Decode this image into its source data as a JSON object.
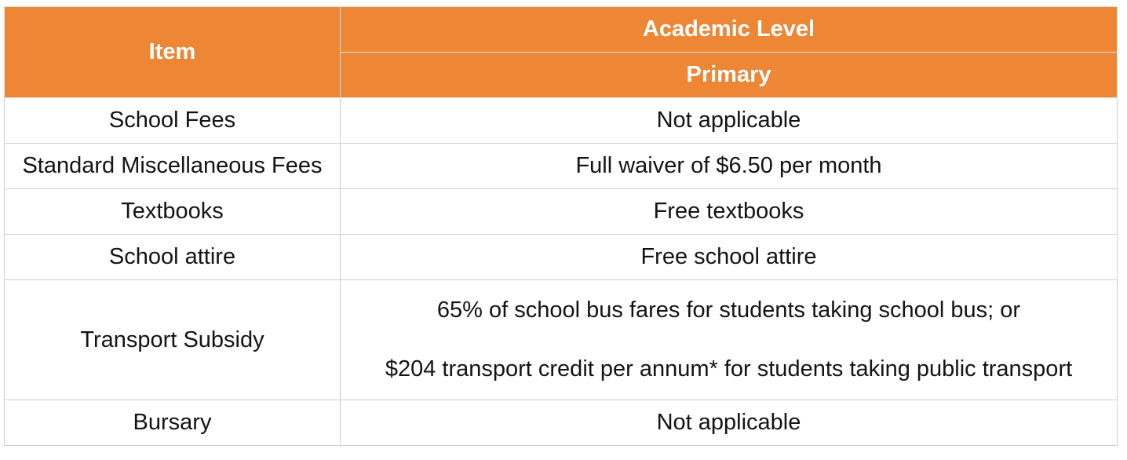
{
  "header": {
    "item_label": "Item",
    "group_label": "Academic Level",
    "level_label": "Primary"
  },
  "rows": [
    {
      "item": "School Fees",
      "value": [
        "Not applicable"
      ]
    },
    {
      "item": "Standard Miscellaneous Fees",
      "value": [
        "Full waiver of $6.50 per month"
      ]
    },
    {
      "item": "Textbooks",
      "value": [
        "Free textbooks"
      ]
    },
    {
      "item": "School attire",
      "value": [
        "Free school attire"
      ]
    },
    {
      "item": "Transport Subsidy",
      "value": [
        "65% of school bus fares for students taking school bus; or",
        "$204 transport credit per annum* for students taking public transport"
      ]
    },
    {
      "item": "Bursary",
      "value": [
        "Not applicable"
      ]
    }
  ],
  "colors": {
    "header_bg": "#ed8635",
    "header_text": "#ffffff",
    "border": "#cfcfcf"
  }
}
